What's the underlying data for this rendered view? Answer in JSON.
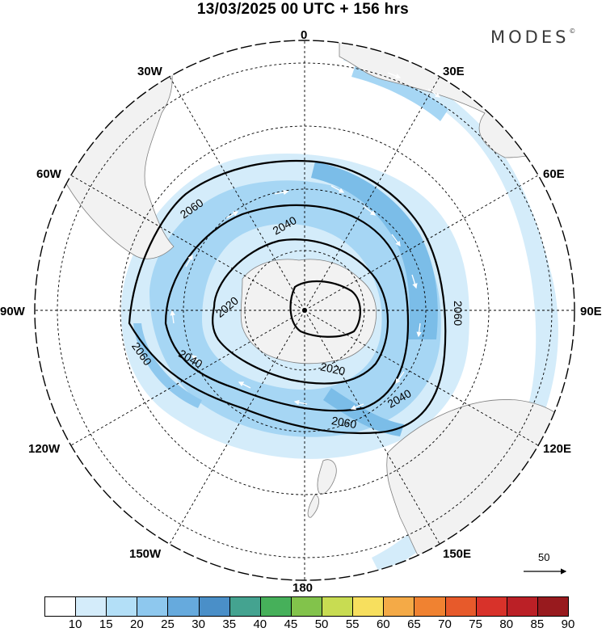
{
  "header": {
    "title": "13/03/2025  00 UTC  + 156 hrs",
    "brand": "MODES",
    "brand_mark": "©"
  },
  "map": {
    "projection": "polar-stereographic-south",
    "longitude_labels": {
      "top": "0",
      "bottom": "180",
      "left": "90W",
      "right": "90E",
      "ul30": "30W",
      "ul60": "60W",
      "ur30": "30E",
      "ur60": "60E",
      "ll120": "120W",
      "ll150": "150W",
      "lr120": "120E",
      "lr150": "150E"
    },
    "contour_labels": [
      "2060",
      "2040",
      "2020",
      "2060",
      "2040",
      "2020",
      "2040",
      "2060",
      "2060"
    ],
    "contour_values": [
      2020,
      2040,
      2060
    ],
    "vector_reference": "50",
    "colors": {
      "land": "#f2f2f2",
      "coast": "#808080",
      "grid": "#000000",
      "shade_light": "#d4ecfa",
      "shade_mid": "#a6d6f4",
      "shade_dark": "#7bbde8"
    }
  },
  "legend": {
    "labels": [
      "10",
      "15",
      "20",
      "25",
      "30",
      "35",
      "40",
      "45",
      "50",
      "55",
      "60",
      "65",
      "70",
      "75",
      "80",
      "85",
      "90"
    ],
    "colors": [
      "#ffffff",
      "#d4ecfa",
      "#b3dff7",
      "#8ec8ee",
      "#66aadd",
      "#4a8fc8",
      "#44a390",
      "#46b05a",
      "#82c34b",
      "#c8dc52",
      "#f7df5e",
      "#f4aa47",
      "#f08231",
      "#e75a2b",
      "#d8322a",
      "#bb2026",
      "#981a1e"
    ]
  }
}
